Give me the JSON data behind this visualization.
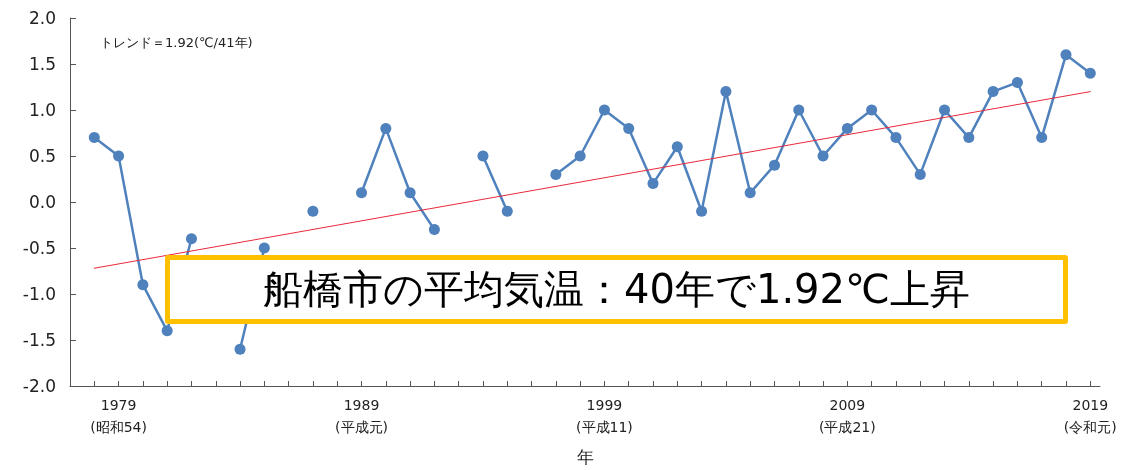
{
  "chart_data": {
    "type": "line",
    "xlabel": "年",
    "annotations": [
      "トレンド＝1.92(℃/41年)",
      "船橋市の平均気温：40年で1.92℃上昇"
    ],
    "xlim": [
      1977,
      2019.4
    ],
    "xticks": [
      {
        "value": 1978,
        "label": null
      },
      {
        "value": 1979,
        "label": "1979\n(昭和54)"
      },
      {
        "value": 1980,
        "label": null
      },
      {
        "value": 1981,
        "label": null
      },
      {
        "value": 1982,
        "label": null
      },
      {
        "value": 1983,
        "label": null
      },
      {
        "value": 1984,
        "label": null
      },
      {
        "value": 1985,
        "label": null
      },
      {
        "value": 1986,
        "label": null
      },
      {
        "value": 1987,
        "label": null
      },
      {
        "value": 1988,
        "label": null
      },
      {
        "value": 1989,
        "label": "1989\n(平成元)"
      },
      {
        "value": 1990,
        "label": null
      },
      {
        "value": 1991,
        "label": null
      },
      {
        "value": 1992,
        "label": null
      },
      {
        "value": 1993,
        "label": null
      },
      {
        "value": 1994,
        "label": null
      },
      {
        "value": 1995,
        "label": null
      },
      {
        "value": 1996,
        "label": null
      },
      {
        "value": 1997,
        "label": null
      },
      {
        "value": 1998,
        "label": null
      },
      {
        "value": 1999,
        "label": "1999\n(平成11)"
      },
      {
        "value": 2000,
        "label": null
      },
      {
        "value": 2001,
        "label": null
      },
      {
        "value": 2002,
        "label": null
      },
      {
        "value": 2003,
        "label": null
      },
      {
        "value": 2004,
        "label": null
      },
      {
        "value": 2005,
        "label": null
      },
      {
        "value": 2006,
        "label": null
      },
      {
        "value": 2007,
        "label": null
      },
      {
        "value": 2008,
        "label": null
      },
      {
        "value": 2009,
        "label": "2009\n(平成21)"
      },
      {
        "value": 2010,
        "label": null
      },
      {
        "value": 2011,
        "label": null
      },
      {
        "value": 2012,
        "label": null
      },
      {
        "value": 2013,
        "label": null
      },
      {
        "value": 2014,
        "label": null
      },
      {
        "value": 2015,
        "label": null
      },
      {
        "value": 2016,
        "label": null
      },
      {
        "value": 2017,
        "label": null
      },
      {
        "value": 2018,
        "label": null
      },
      {
        "value": 2019,
        "label": "2019\n(令和元)"
      }
    ],
    "ylim": [
      -2,
      2
    ],
    "yticks": [
      {
        "value": -2,
        "label": "-2.0"
      },
      {
        "value": -1.5,
        "label": "-1.5"
      },
      {
        "value": -1,
        "label": "-1.0"
      },
      {
        "value": -0.5,
        "label": "-0.5"
      },
      {
        "value": 0,
        "label": "0.0"
      },
      {
        "value": 0.5,
        "label": "0.5"
      },
      {
        "value": 1,
        "label": "1.0"
      },
      {
        "value": 1.5,
        "label": "1.5"
      },
      {
        "value": 2,
        "label": "2.0"
      }
    ],
    "grid": false,
    "series": [
      {
        "color": "#4f81bd",
        "marker": "circle",
        "x": [
          1978,
          1979,
          1980,
          1981,
          1982,
          1983,
          1984,
          1985,
          1986,
          1987,
          1988,
          1989,
          1990,
          1991,
          1992,
          1993,
          1994,
          1995,
          1996,
          1997,
          1998,
          1999,
          2000,
          2001,
          2002,
          2003,
          2004,
          2005,
          2006,
          2007,
          2008,
          2009,
          2010,
          2011,
          2012,
          2013,
          2014,
          2015,
          2016,
          2017,
          2018,
          2019
        ],
        "values": [
          0.7,
          0.5,
          -0.9,
          -1.4,
          -0.4,
          null,
          -1.6,
          -0.5,
          null,
          -0.1,
          null,
          0.1,
          0.8,
          0.1,
          -0.3,
          null,
          0.5,
          -0.1,
          null,
          0.3,
          0.5,
          1.0,
          0.8,
          0.2,
          0.6,
          -0.1,
          1.2,
          0.1,
          0.4,
          1.0,
          0.5,
          0.8,
          1.0,
          0.7,
          0.3,
          1.0,
          0.7,
          1.2,
          1.3,
          0.7,
          1.6,
          1.4
        ]
      },
      {
        "color": "#e8283c",
        "marker": "none",
        "x": [
          1978,
          2019
        ],
        "values": [
          -0.72,
          1.2
        ]
      }
    ]
  }
}
